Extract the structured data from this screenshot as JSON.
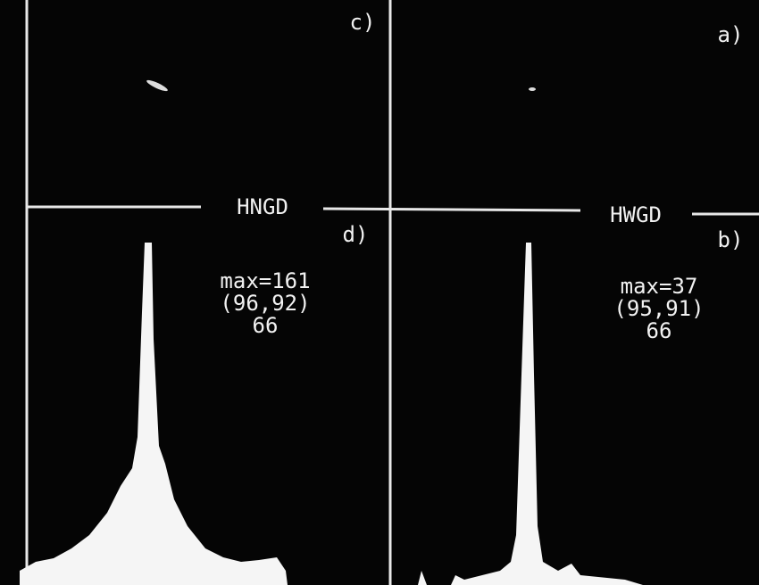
{
  "panels": {
    "left": {
      "top_label": "c)",
      "title": "HNGD",
      "bottom_label": "d)",
      "stats": [
        "max=161",
        "(96,92)",
        "66"
      ]
    },
    "right": {
      "top_label": "a)",
      "title": "HWGD",
      "bottom_label": "b)",
      "stats": [
        "max=37",
        "(95,91)",
        "66"
      ]
    }
  }
}
